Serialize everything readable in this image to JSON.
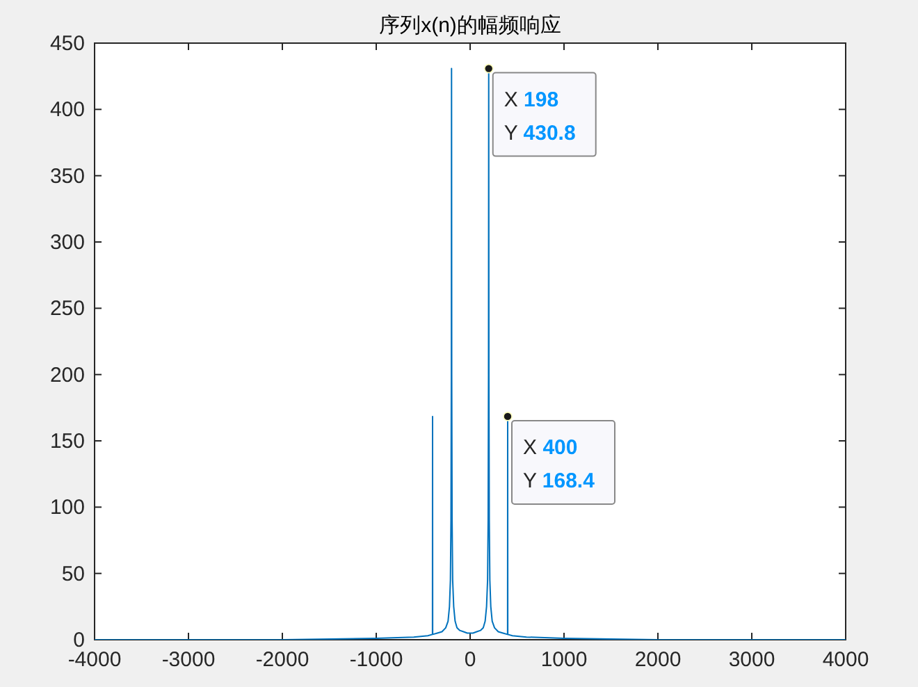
{
  "chart_data": {
    "type": "line",
    "title": "序列x(n)的幅频响应",
    "x": [
      -4000,
      -2000,
      -1000,
      -600,
      -450,
      -401,
      -400,
      -399,
      -350,
      -300,
      -260,
      -235,
      -220,
      -210,
      -204,
      -200,
      -198,
      -196,
      -192,
      -186,
      -175,
      -160,
      -140,
      -110,
      -70,
      -30,
      0,
      30,
      70,
      110,
      140,
      160,
      175,
      186,
      192,
      196,
      198,
      200,
      204,
      210,
      220,
      235,
      260,
      300,
      350,
      399,
      400,
      401,
      450,
      600,
      1000,
      2000,
      4000
    ],
    "series": [
      {
        "color": "#0072bd",
        "values": [
          0,
          0,
          1,
          2,
          3,
          4,
          168.4,
          4,
          5,
          6,
          9,
          14,
          25,
          45,
          90,
          200,
          430.8,
          200,
          90,
          45,
          25,
          14,
          9,
          7,
          6,
          5,
          5,
          5,
          6,
          7,
          9,
          14,
          25,
          45,
          90,
          200,
          430.8,
          200,
          90,
          45,
          25,
          14,
          9,
          6,
          5,
          4,
          168.4,
          4,
          3,
          2,
          1,
          0,
          0
        ]
      }
    ],
    "xlim": [
      -4000,
      4000
    ],
    "ylim": [
      0,
      450
    ],
    "xticks": [
      -4000,
      -3000,
      -2000,
      -1000,
      0,
      1000,
      2000,
      3000,
      4000
    ],
    "yticks": [
      0,
      50,
      100,
      150,
      200,
      250,
      300,
      350,
      400,
      450
    ],
    "line_style": "solid",
    "annotations": [
      {
        "text": "X 198\nY 430.8",
        "x": 198,
        "y": 430.8
      },
      {
        "text": "X 400\nY 168.4",
        "x": 400,
        "y": 168.4
      }
    ]
  }
}
